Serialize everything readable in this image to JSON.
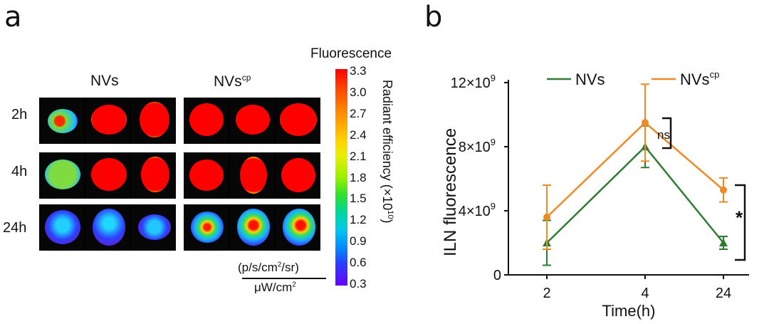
{
  "panel_a": {
    "letter": "a",
    "group_labels": [
      "NVs",
      "NVs"
    ],
    "group_sup": "cp",
    "row_labels": [
      "2h",
      "4h",
      "24h"
    ],
    "colorbar": {
      "title": "Fluorescence",
      "ticks": [
        "3.3",
        "3.0",
        "2.7",
        "2.4",
        "2.1",
        "1.8",
        "1.5",
        "1.2",
        "0.9",
        "0.6",
        "0.3"
      ],
      "side_label": "Radiant efficiency (×10",
      "side_sup": "10",
      "side_close": ")",
      "unit_numerator": "p/s/cm",
      "unit_num_sup": "2",
      "unit_num_tail": "/sr",
      "unit_denominator": "μW/cm",
      "unit_den_sup": "2"
    }
  },
  "panel_b": {
    "letter": "b"
  },
  "chart_data": {
    "type": "line",
    "title": "",
    "xlabel": "Time(h)",
    "ylabel": "ILN fluorescence",
    "categories": [
      "2",
      "4",
      "24"
    ],
    "ylim": [
      0,
      12000000000
    ],
    "ytick_labels": [
      {
        "value": 0,
        "base": "0",
        "sup": ""
      },
      {
        "value": 4000000000,
        "base": "4×10",
        "sup": "9"
      },
      {
        "value": 8000000000,
        "base": "8×10",
        "sup": "9"
      },
      {
        "value": 12000000000,
        "base": "12×10",
        "sup": "9"
      }
    ],
    "series": [
      {
        "name": "NVs",
        "sup": "",
        "color": "#2e7d32",
        "marker": "triangle",
        "values": [
          2000000000,
          8000000000,
          2000000000
        ],
        "errors": [
          1400000000,
          1300000000,
          400000000
        ]
      },
      {
        "name": "NVs",
        "sup": "cp",
        "color": "#f08a24",
        "marker": "circle",
        "values": [
          3600000000,
          9500000000,
          5300000000
        ],
        "errors": [
          2000000000,
          2400000000,
          750000000
        ]
      }
    ],
    "annotations": [
      {
        "text": "ns",
        "category": "4"
      },
      {
        "text": "*",
        "category": "24"
      }
    ]
  }
}
